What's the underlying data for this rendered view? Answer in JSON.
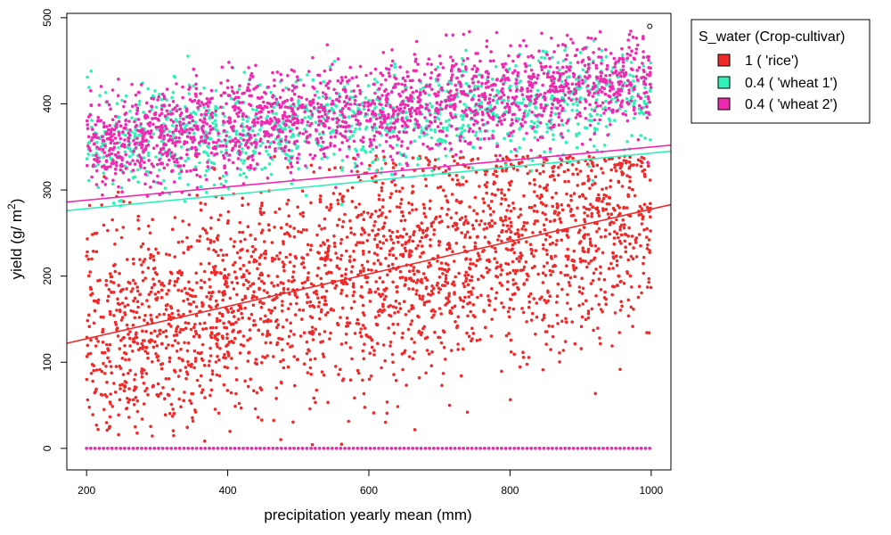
{
  "chart_data": {
    "type": "scatter",
    "title": "",
    "xlabel": "precipitation yearly mean (mm)",
    "ylabel": "yield (g/ m",
    "ylabel_sup": "2",
    "ylabel_close": ")",
    "xlim": [
      172,
      1028
    ],
    "ylim": [
      -25,
      505
    ],
    "xticks": [
      200,
      400,
      600,
      800,
      1000
    ],
    "yticks": [
      0,
      100,
      200,
      300,
      400,
      500
    ],
    "grid": false,
    "legend": {
      "position": "top-right",
      "title": "S_water (Crop-cultivar)",
      "entries": [
        {
          "label": "1 ( 'rice')",
          "color": "#f02a2a"
        },
        {
          "label": "0.4 ( 'wheat 1')",
          "color": "#2ff0b8"
        },
        {
          "label": "0.4 ( 'wheat 2')",
          "color": "#f02ab0"
        }
      ]
    },
    "series": [
      {
        "name": "1 ( 'rice')",
        "color": "#f02a2a",
        "x_range": [
          200,
          1000
        ],
        "points_mean_at_x_min": 130,
        "points_mean_at_x_max": 270,
        "fit_line": {
          "x": [
            172,
            1028
          ],
          "y": [
            122,
            283
          ]
        }
      },
      {
        "name": "0.4 ( 'wheat 1')",
        "color": "#2ff0b8",
        "x_range": [
          200,
          1000
        ],
        "points_mean_at_x_min": 350,
        "points_mean_at_x_max": 410,
        "fit_line": {
          "x": [
            172,
            1028
          ],
          "y": [
            276,
            345
          ]
        }
      },
      {
        "name": "0.4 ( 'wheat 2')",
        "color": "#f02ab0",
        "x_range": [
          200,
          1000
        ],
        "points_mean_at_x_min": 355,
        "points_mean_at_x_max": 430,
        "fit_line": {
          "x": [
            172,
            1028
          ],
          "y": [
            286,
            352
          ]
        }
      }
    ],
    "annotations": [
      {
        "text": "zero-yield points along y = 0 from x = 200 to 1000",
        "y": 0
      }
    ],
    "outlier_marker": {
      "x": 998,
      "y": 490
    }
  }
}
